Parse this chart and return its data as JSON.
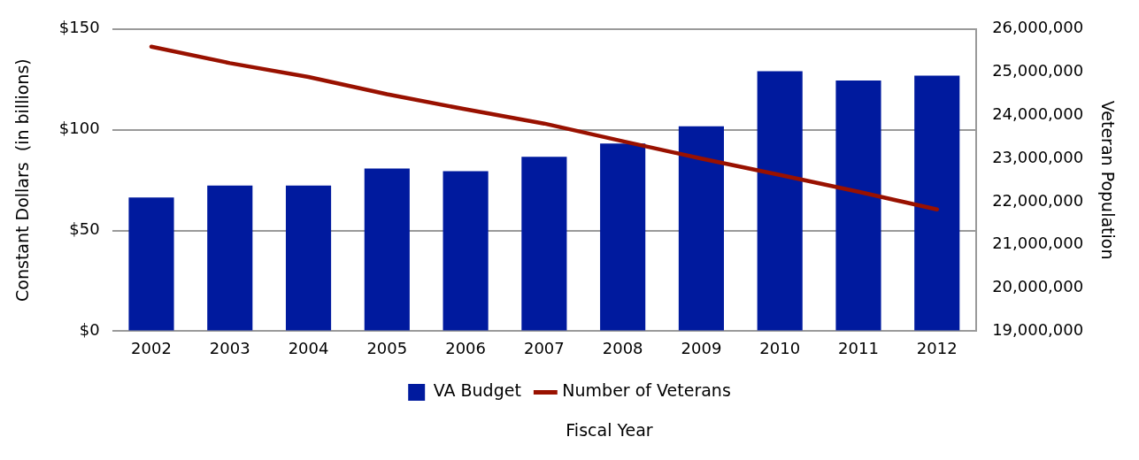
{
  "chart_data": {
    "type": "bar",
    "xlabel": "Fiscal Year",
    "ylabel": "Constant Dollars  (in billions)",
    "y2label": "Veteran Population",
    "categories": [
      "2002",
      "2003",
      "2004",
      "2005",
      "2006",
      "2007",
      "2008",
      "2009",
      "2010",
      "2011",
      "2012"
    ],
    "series": [
      {
        "name": "VA Budget",
        "color": "#001a9e",
        "values": [
          66.4,
          72.3,
          72.3,
          80.7,
          79.4,
          86.6,
          93.2,
          101.7,
          129.1,
          124.4,
          126.9
        ]
      },
      {
        "name": "Number of Veterans",
        "type": "line",
        "axis": "y2",
        "color": "#991100",
        "values": [
          25590000,
          25210000,
          24890000,
          24490000,
          24140000,
          23810000,
          23400000,
          23000000,
          22620000,
          22230000,
          21820000
        ]
      }
    ],
    "ylim": [
      0,
      150
    ],
    "yticks": [
      {
        "value": 0,
        "label": "$0"
      },
      {
        "value": 50,
        "label": "$50"
      },
      {
        "value": 100,
        "label": "$100"
      },
      {
        "value": 150,
        "label": "$150"
      }
    ],
    "y2lim": [
      19000000,
      26000000
    ],
    "y2ticks": [
      {
        "value": 19000000,
        "label": "19,000,000"
      },
      {
        "value": 20000000,
        "label": "20,000,000"
      },
      {
        "value": 21000000,
        "label": "21,000,000"
      },
      {
        "value": 22000000,
        "label": "22,000,000"
      },
      {
        "value": 23000000,
        "label": "23,000,000"
      },
      {
        "value": 24000000,
        "label": "24,000,000"
      },
      {
        "value": 25000000,
        "label": "25,000,000"
      },
      {
        "value": 26000000,
        "label": "26,000,000"
      }
    ],
    "grid": "y",
    "legend": "bottom",
    "marker": "none"
  }
}
